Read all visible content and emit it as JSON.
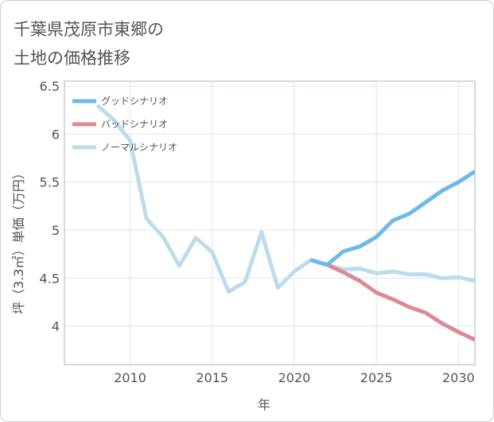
{
  "page": {
    "title_line1": "千葉県茂原市東郷の",
    "title_line2": "土地の価格推移"
  },
  "chart_data": {
    "type": "line",
    "title": "千葉県茂原市東郷の土地の価格推移",
    "xlabel": "年",
    "ylabel": "坪（3.3㎡）単価（万円）",
    "xlim": [
      2006,
      2031
    ],
    "ylim": [
      3.6,
      6.55
    ],
    "x_ticks": [
      2010,
      2015,
      2020,
      2025,
      2030
    ],
    "x_tick_labels": [
      "2010",
      "2015",
      "2020",
      "2025",
      "2030"
    ],
    "y_ticks": [
      4,
      4.5,
      5,
      5.5,
      6,
      6.5
    ],
    "y_tick_labels": [
      "4",
      "4.5",
      "5",
      "5.5",
      "6",
      "6.5"
    ],
    "grid": true,
    "legend_position": "top-left",
    "series": [
      {
        "name": "グッドシナリオ",
        "color": "#6fb8ea",
        "x": [
          2021,
          2022,
          2023,
          2024,
          2025,
          2026,
          2027,
          2028,
          2029,
          2030,
          2031
        ],
        "y": [
          4.69,
          4.64,
          4.78,
          4.83,
          4.93,
          5.1,
          5.17,
          5.29,
          5.41,
          5.5,
          5.61
        ]
      },
      {
        "name": "バッドシナリオ",
        "color": "#dc8a94",
        "x": [
          2021,
          2022,
          2023,
          2024,
          2025,
          2026,
          2027,
          2028,
          2029,
          2030,
          2031
        ],
        "y": [
          4.69,
          4.64,
          4.56,
          4.47,
          4.35,
          4.28,
          4.2,
          4.14,
          4.03,
          3.94,
          3.86
        ]
      },
      {
        "name": "ノーマルシナリオ",
        "color": "#bcdceb",
        "x": [
          2008,
          2009,
          2010,
          2011,
          2012,
          2013,
          2014,
          2015,
          2016,
          2017,
          2018,
          2019,
          2020,
          2021,
          2022,
          2023,
          2024,
          2025,
          2026,
          2027,
          2028,
          2029,
          2030,
          2031
        ],
        "y": [
          6.3,
          6.15,
          5.93,
          5.12,
          4.93,
          4.63,
          4.92,
          4.77,
          4.36,
          4.46,
          4.98,
          4.4,
          4.57,
          4.69,
          4.64,
          4.59,
          4.6,
          4.55,
          4.57,
          4.54,
          4.54,
          4.5,
          4.51,
          4.47
        ]
      }
    ]
  }
}
